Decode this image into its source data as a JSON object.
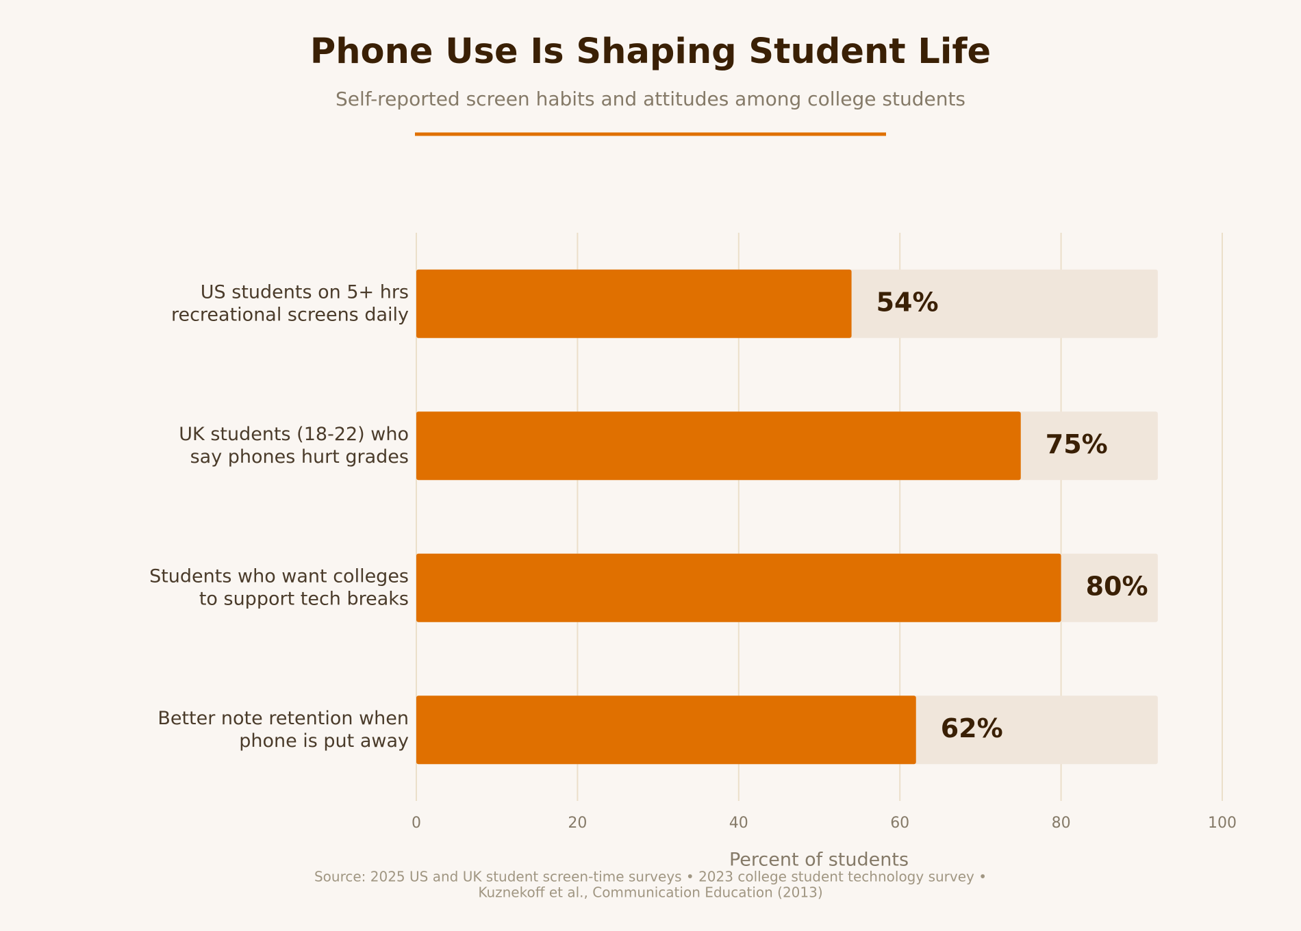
{
  "chart_data": {
    "type": "bar",
    "orientation": "horizontal",
    "title": "Phone Use Is Shaping Student Life",
    "subtitle": "Self-reported screen habits and attitudes among college students",
    "categories": [
      "US students on 5+ hrs\nrecreational screens daily",
      "UK students (18-22) who\nsay phones hurt grades",
      "Students who want colleges\nto support tech breaks",
      "Better note retention when\nphone is put away"
    ],
    "values": [
      54,
      75,
      80,
      62
    ],
    "value_labels": [
      "54%",
      "75%",
      "80%",
      "62%"
    ],
    "color": "#e07000",
    "xlim": [
      0,
      100
    ],
    "xticks": [
      0,
      20,
      40,
      60,
      80,
      100
    ],
    "grid": true,
    "xlabel": "Percent of students",
    "source": [
      "Source: 2025 US and UK student screen-time surveys  •  2023 college student technology survey  •",
      "Kuznekoff et al., Communication Education (2013)"
    ]
  }
}
